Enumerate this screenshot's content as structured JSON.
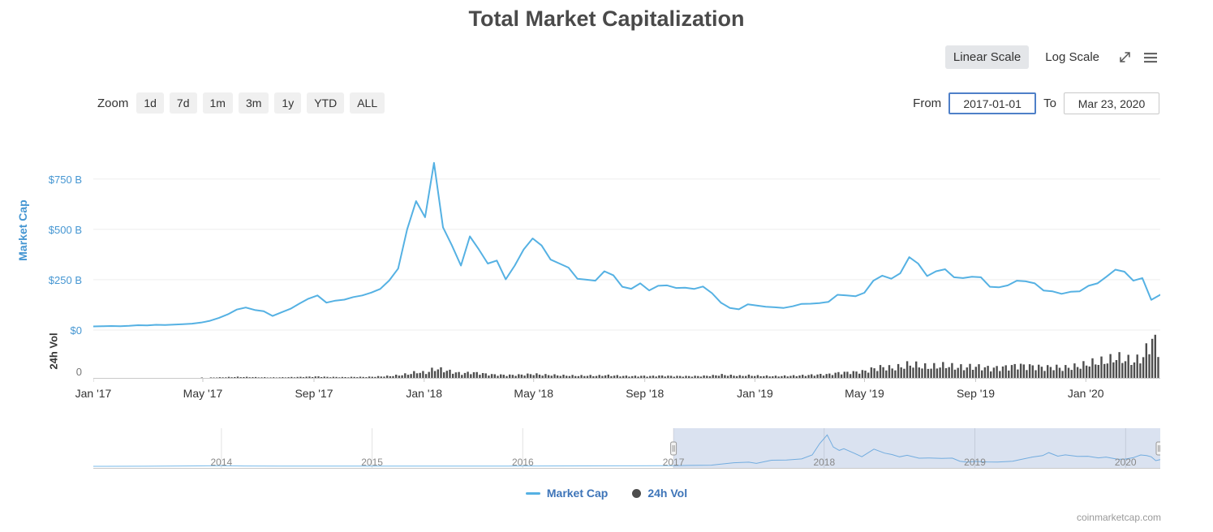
{
  "header": {
    "title": "Total Market Capitalization"
  },
  "controls": {
    "linear_scale_label": "Linear Scale",
    "log_scale_label": "Log Scale",
    "zoom_label": "Zoom",
    "zoom_buttons": [
      "1d",
      "7d",
      "1m",
      "3m",
      "1y",
      "YTD",
      "ALL"
    ],
    "from_label": "From",
    "from_value": "2017-01-01",
    "to_label": "To",
    "to_value": "Mar 23, 2020"
  },
  "legend": {
    "market_cap_label": "Market Cap",
    "volume_label": "24h Vol"
  },
  "footer": {
    "watermark": "coinmarketcap.com"
  },
  "colors": {
    "market_cap_line": "#55b1e3",
    "volume_bar": "#4d4d4d",
    "axis_label_blue": "#4596d2",
    "navigator_line": "#77b9e9",
    "navigator_mask": "rgba(102,133,194,0.24)",
    "legend_text": "#3d74b8"
  },
  "chart_data": {
    "type": "line",
    "title": "Total Market Capitalization",
    "x_unit": "decimal_year",
    "x_range_decimal_years": [
      2017.0,
      2020.225
    ],
    "xaxis_ticks": [
      {
        "label": "Jan '17",
        "t": 2017.0
      },
      {
        "label": "May '17",
        "t": 2017.331
      },
      {
        "label": "Sep '17",
        "t": 2017.667
      },
      {
        "label": "Jan '18",
        "t": 2018.0
      },
      {
        "label": "May '18",
        "t": 2018.331
      },
      {
        "label": "Sep '18",
        "t": 2018.667
      },
      {
        "label": "Jan '19",
        "t": 2019.0
      },
      {
        "label": "May '19",
        "t": 2019.331
      },
      {
        "label": "Sep '19",
        "t": 2019.667
      },
      {
        "label": "Jan '20",
        "t": 2020.0
      }
    ],
    "yaxis_market_cap": {
      "title": "Market Cap",
      "unit": "USD billions",
      "max": 930,
      "ticks": [
        {
          "label": "$0",
          "value": 0
        },
        {
          "label": "$250 B",
          "value": 250
        },
        {
          "label": "$500 B",
          "value": 500
        },
        {
          "label": "$750 B",
          "value": 750
        }
      ]
    },
    "yaxis_volume": {
      "title": "24h Vol",
      "zero_label": "0",
      "max": 210
    },
    "series": [
      {
        "name": "Market Cap",
        "type": "line",
        "color": "#55b1e3",
        "unit": "USD billions",
        "values": [
          18,
          19,
          20,
          19,
          21,
          24,
          23,
          26,
          25,
          27,
          29,
          32,
          37,
          46,
          60,
          78,
          102,
          112,
          100,
          94,
          70,
          88,
          106,
          132,
          156,
          172,
          136,
          146,
          151,
          164,
          172,
          186,
          204,
          246,
          305,
          500,
          640,
          560,
          830,
          510,
          420,
          320,
          465,
          400,
          330,
          345,
          252,
          320,
          400,
          455,
          420,
          350,
          330,
          310,
          255,
          250,
          245,
          292,
          272,
          215,
          205,
          232,
          197,
          220,
          222,
          209,
          210,
          204,
          216,
          183,
          136,
          110,
          103,
          128,
          122,
          116,
          113,
          110,
          118,
          130,
          131,
          134,
          140,
          175,
          172,
          168,
          185,
          245,
          270,
          255,
          282,
          362,
          330,
          268,
          292,
          302,
          262,
          258,
          265,
          262,
          215,
          212,
          222,
          245,
          242,
          232,
          196,
          192,
          180,
          190,
          192,
          220,
          232,
          265,
          300,
          290,
          245,
          258,
          150,
          175
        ]
      },
      {
        "name": "24h Vol",
        "type": "column",
        "color": "#4d4d4d",
        "unit": "USD billions",
        "values": [
          0.2,
          0.2,
          0.3,
          0.2,
          0.3,
          0.4,
          0.4,
          0.5,
          0.4,
          0.5,
          0.6,
          1,
          1.5,
          2,
          3,
          4,
          5,
          4.5,
          3.5,
          3,
          2.5,
          3,
          4,
          5,
          6,
          7,
          5,
          4.5,
          4,
          5,
          5,
          6,
          8,
          10,
          14,
          20,
          30,
          26,
          48,
          40,
          30,
          22,
          28,
          24,
          18,
          16,
          14,
          15,
          17,
          20,
          16,
          15,
          13,
          12,
          11,
          12,
          11,
          14,
          12,
          10,
          9,
          10,
          9,
          11,
          10,
          9,
          9,
          9,
          10,
          12,
          16,
          13,
          11,
          13,
          11,
          10,
          9,
          10,
          11,
          13,
          15,
          17,
          19,
          26,
          28,
          30,
          35,
          48,
          55,
          50,
          58,
          70,
          62,
          55,
          60,
          64,
          56,
          54,
          58,
          55,
          48,
          52,
          56,
          64,
          60,
          58,
          52,
          56,
          50,
          56,
          62,
          75,
          82,
          88,
          105,
          95,
          85,
          110,
          200,
          130
        ]
      }
    ],
    "navigator": {
      "range_decimal_years": [
        2013.15,
        2020.23
      ],
      "selected_from_decimal_year": 2017.0,
      "selected_to_decimal_year": 2020.23,
      "max": 900,
      "year_labels": [
        2014,
        2015,
        2016,
        2017,
        2018,
        2019,
        2020
      ],
      "points": [
        [
          2013.15,
          1
        ],
        [
          2013.5,
          1.5
        ],
        [
          2013.85,
          10
        ],
        [
          2014.0,
          14
        ],
        [
          2014.15,
          9
        ],
        [
          2014.4,
          7
        ],
        [
          2014.7,
          5.5
        ],
        [
          2015.0,
          4
        ],
        [
          2015.3,
          4
        ],
        [
          2015.6,
          4.5
        ],
        [
          2015.9,
          6
        ],
        [
          2016.1,
          8
        ],
        [
          2016.4,
          10
        ],
        [
          2016.7,
          13
        ],
        [
          2016.95,
          15
        ],
        [
          2017.0,
          18
        ],
        [
          2017.1,
          24
        ],
        [
          2017.25,
          30
        ],
        [
          2017.4,
          95
        ],
        [
          2017.5,
          110
        ],
        [
          2017.55,
          78
        ],
        [
          2017.65,
          160
        ],
        [
          2017.75,
          165
        ],
        [
          2017.85,
          195
        ],
        [
          2017.92,
          300
        ],
        [
          2017.97,
          600
        ],
        [
          2018.02,
          830
        ],
        [
          2018.06,
          510
        ],
        [
          2018.1,
          420
        ],
        [
          2018.13,
          465
        ],
        [
          2018.2,
          345
        ],
        [
          2018.25,
          252
        ],
        [
          2018.33,
          455
        ],
        [
          2018.4,
          350
        ],
        [
          2018.45,
          310
        ],
        [
          2018.5,
          250
        ],
        [
          2018.55,
          292
        ],
        [
          2018.63,
          215
        ],
        [
          2018.7,
          220
        ],
        [
          2018.78,
          210
        ],
        [
          2018.85,
          216
        ],
        [
          2018.9,
          136
        ],
        [
          2018.95,
          110
        ],
        [
          2019.0,
          128
        ],
        [
          2019.08,
          116
        ],
        [
          2019.15,
          113
        ],
        [
          2019.25,
          134
        ],
        [
          2019.3,
          175
        ],
        [
          2019.38,
          245
        ],
        [
          2019.45,
          282
        ],
        [
          2019.49,
          362
        ],
        [
          2019.55,
          268
        ],
        [
          2019.6,
          302
        ],
        [
          2019.68,
          262
        ],
        [
          2019.75,
          265
        ],
        [
          2019.82,
          222
        ],
        [
          2019.87,
          245
        ],
        [
          2019.95,
          184
        ],
        [
          2020.0,
          192
        ],
        [
          2020.05,
          228
        ],
        [
          2020.1,
          300
        ],
        [
          2020.14,
          282
        ],
        [
          2020.17,
          250
        ],
        [
          2020.2,
          150
        ],
        [
          2020.23,
          175
        ]
      ]
    }
  }
}
